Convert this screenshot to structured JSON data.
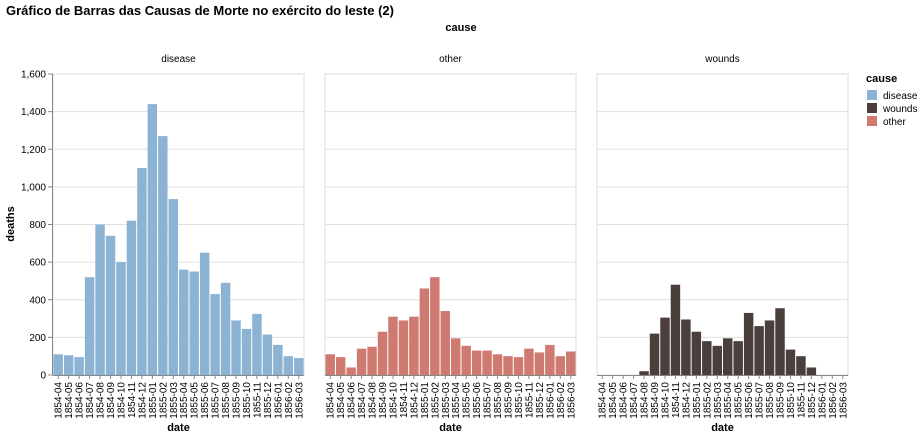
{
  "chart_data": {
    "type": "bar",
    "title": "Gráfico de Barras das Causas de Morte no exército do leste (2)",
    "facet_title": "cause",
    "xlabel": "date",
    "ylabel": "deaths",
    "ylim": [
      0,
      1600
    ],
    "yticks": [
      0,
      200,
      400,
      600,
      800,
      1000,
      1200,
      1400,
      1600
    ],
    "ytick_labels": [
      "0",
      "200",
      "400",
      "600",
      "800",
      "1,000",
      "1,200",
      "1,400",
      "1,600"
    ],
    "grid": true,
    "legend": {
      "title": "cause",
      "placement": "right",
      "items": [
        {
          "label": "disease",
          "color": "#8cb3d3"
        },
        {
          "label": "wounds",
          "color": "#4a3f3c"
        },
        {
          "label": "other",
          "color": "#cf7a70"
        }
      ]
    },
    "categories": [
      "1854-04",
      "1854-05",
      "1854-06",
      "1854-07",
      "1854-08",
      "1854-09",
      "1854-10",
      "1854-11",
      "1854-12",
      "1855-01",
      "1855-02",
      "1855-03",
      "1855-04",
      "1855-05",
      "1855-06",
      "1855-07",
      "1855-08",
      "1855-09",
      "1855-10",
      "1855-11",
      "1855-12",
      "1856-01",
      "1856-02",
      "1856-03"
    ],
    "series": [
      {
        "name": "disease",
        "color": "#8cb3d3",
        "values": [
          110,
          105,
          95,
          520,
          800,
          740,
          600,
          820,
          1100,
          1440,
          1270,
          935,
          560,
          550,
          650,
          430,
          490,
          290,
          245,
          325,
          215,
          160,
          100,
          90
        ]
      },
      {
        "name": "other",
        "color": "#cf7a70",
        "values": [
          110,
          95,
          40,
          140,
          150,
          230,
          310,
          290,
          310,
          460,
          520,
          340,
          195,
          155,
          130,
          130,
          110,
          100,
          95,
          140,
          120,
          160,
          100,
          125
        ]
      },
      {
        "name": "wounds",
        "color": "#4a3f3c",
        "values": [
          0,
          0,
          0,
          0,
          20,
          220,
          305,
          480,
          295,
          230,
          180,
          155,
          195,
          180,
          330,
          260,
          290,
          355,
          135,
          100,
          40,
          0,
          0,
          0
        ]
      }
    ]
  }
}
